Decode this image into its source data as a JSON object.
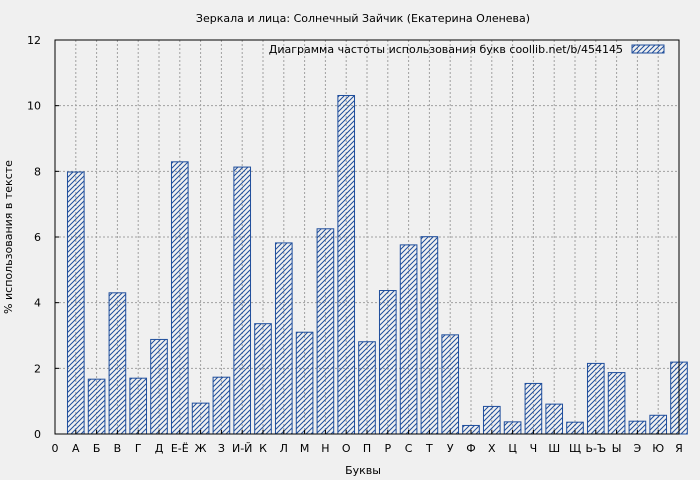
{
  "chart_data": {
    "type": "bar",
    "title": "Зеркала и лица: Солнечный Зайчик (Екатерина Оленева)",
    "xlabel": "Буквы",
    "ylabel": "% использования в тексте",
    "legend": "Диаграмма частоты использования букв  coollib.net/b/454145",
    "legend_position": "top-right",
    "grid": true,
    "ylim": [
      0,
      12
    ],
    "yticks": [
      0,
      2,
      4,
      6,
      8,
      10,
      12
    ],
    "x_tick_labels": [
      "0",
      "А",
      "Б",
      "В",
      "Г",
      "Д",
      "Е-Ё",
      "Ж",
      "З",
      "И-Й",
      "К",
      "Л",
      "М",
      "Н",
      "О",
      "П",
      "Р",
      "С",
      "Т",
      "У",
      "Ф",
      "Х",
      "Ц",
      "Ч",
      "Ш",
      "Щ",
      "Ь-Ъ",
      "Ы",
      "Э",
      "Ю",
      "Я"
    ],
    "categories": [
      "А",
      "Б",
      "В",
      "Г",
      "Д",
      "Е-Ё",
      "Ж",
      "З",
      "И-Й",
      "К",
      "Л",
      "М",
      "Н",
      "О",
      "П",
      "Р",
      "С",
      "Т",
      "У",
      "Ф",
      "Х",
      "Ц",
      "Ч",
      "Ш",
      "Щ",
      "Ь-Ъ",
      "Ы",
      "Э",
      "Ю",
      "Я"
    ],
    "values": [
      7.98,
      1.67,
      4.3,
      1.7,
      2.88,
      8.29,
      0.94,
      1.73,
      8.13,
      3.36,
      5.82,
      3.1,
      6.25,
      10.31,
      2.81,
      4.37,
      5.76,
      6.01,
      3.02,
      0.26,
      0.84,
      0.37,
      1.54,
      0.91,
      0.36,
      2.15,
      1.87,
      0.39,
      0.57,
      2.19
    ],
    "colors": {
      "bar_stroke": "#1f4e9c",
      "grid": "#a0a0a0",
      "background": "#f0f0f0"
    }
  }
}
